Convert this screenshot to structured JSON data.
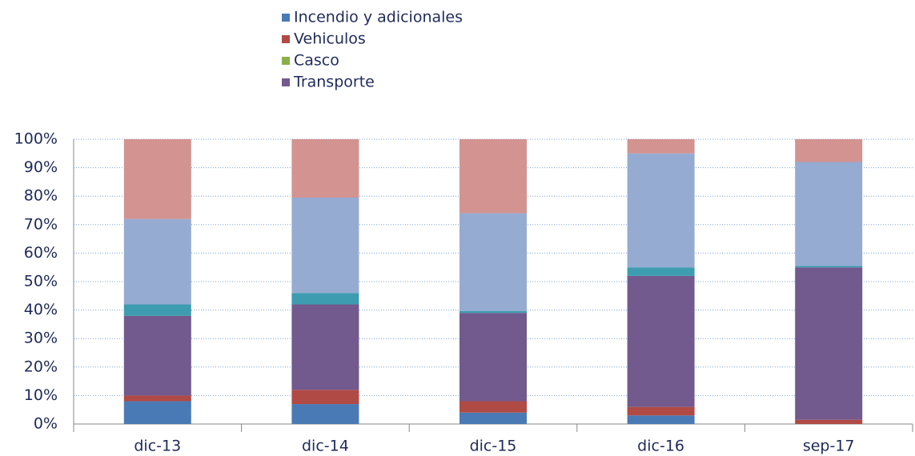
{
  "chart_data": {
    "type": "stacked_bar",
    "categories": [
      "dic-13",
      "dic-14",
      "dic-15",
      "dic-16",
      "sep-17"
    ],
    "series": [
      {
        "name": "Incendio y adicionales",
        "color": "#4a7ab5",
        "values": [
          8,
          7,
          4,
          3,
          0
        ]
      },
      {
        "name": "Vehiculos",
        "color": "#b04a45",
        "values": [
          2,
          5,
          4,
          3,
          1.5
        ]
      },
      {
        "name": "Casco",
        "color": "#8aae4a",
        "values": [
          0,
          0,
          0,
          0,
          0
        ]
      },
      {
        "name": "Transporte",
        "color": "#72598e",
        "values": [
          28,
          30,
          31,
          46,
          53.5
        ]
      },
      {
        "color": "#3d9cb0",
        "values": [
          4,
          4,
          0.7,
          3,
          0.5
        ]
      },
      {
        "color": "#95abd2",
        "values": [
          30,
          33.5,
          34.3,
          40,
          36.5
        ]
      },
      {
        "color": "#d29391",
        "values": [
          28,
          20.5,
          26,
          5,
          8
        ]
      }
    ],
    "ylim": [
      0,
      100
    ],
    "yticks": [
      {
        "value": 0,
        "label": "0%"
      },
      {
        "value": 10,
        "label": "10%"
      },
      {
        "value": 20,
        "label": "20%"
      },
      {
        "value": 30,
        "label": "30%"
      },
      {
        "value": 40,
        "label": "40%"
      },
      {
        "value": 50,
        "label": "50%"
      },
      {
        "value": 60,
        "label": "60%"
      },
      {
        "value": 70,
        "label": "70%"
      },
      {
        "value": 80,
        "label": "80%"
      },
      {
        "value": 90,
        "label": "90%"
      },
      {
        "value": 100,
        "label": "100%"
      }
    ],
    "grid": true
  }
}
